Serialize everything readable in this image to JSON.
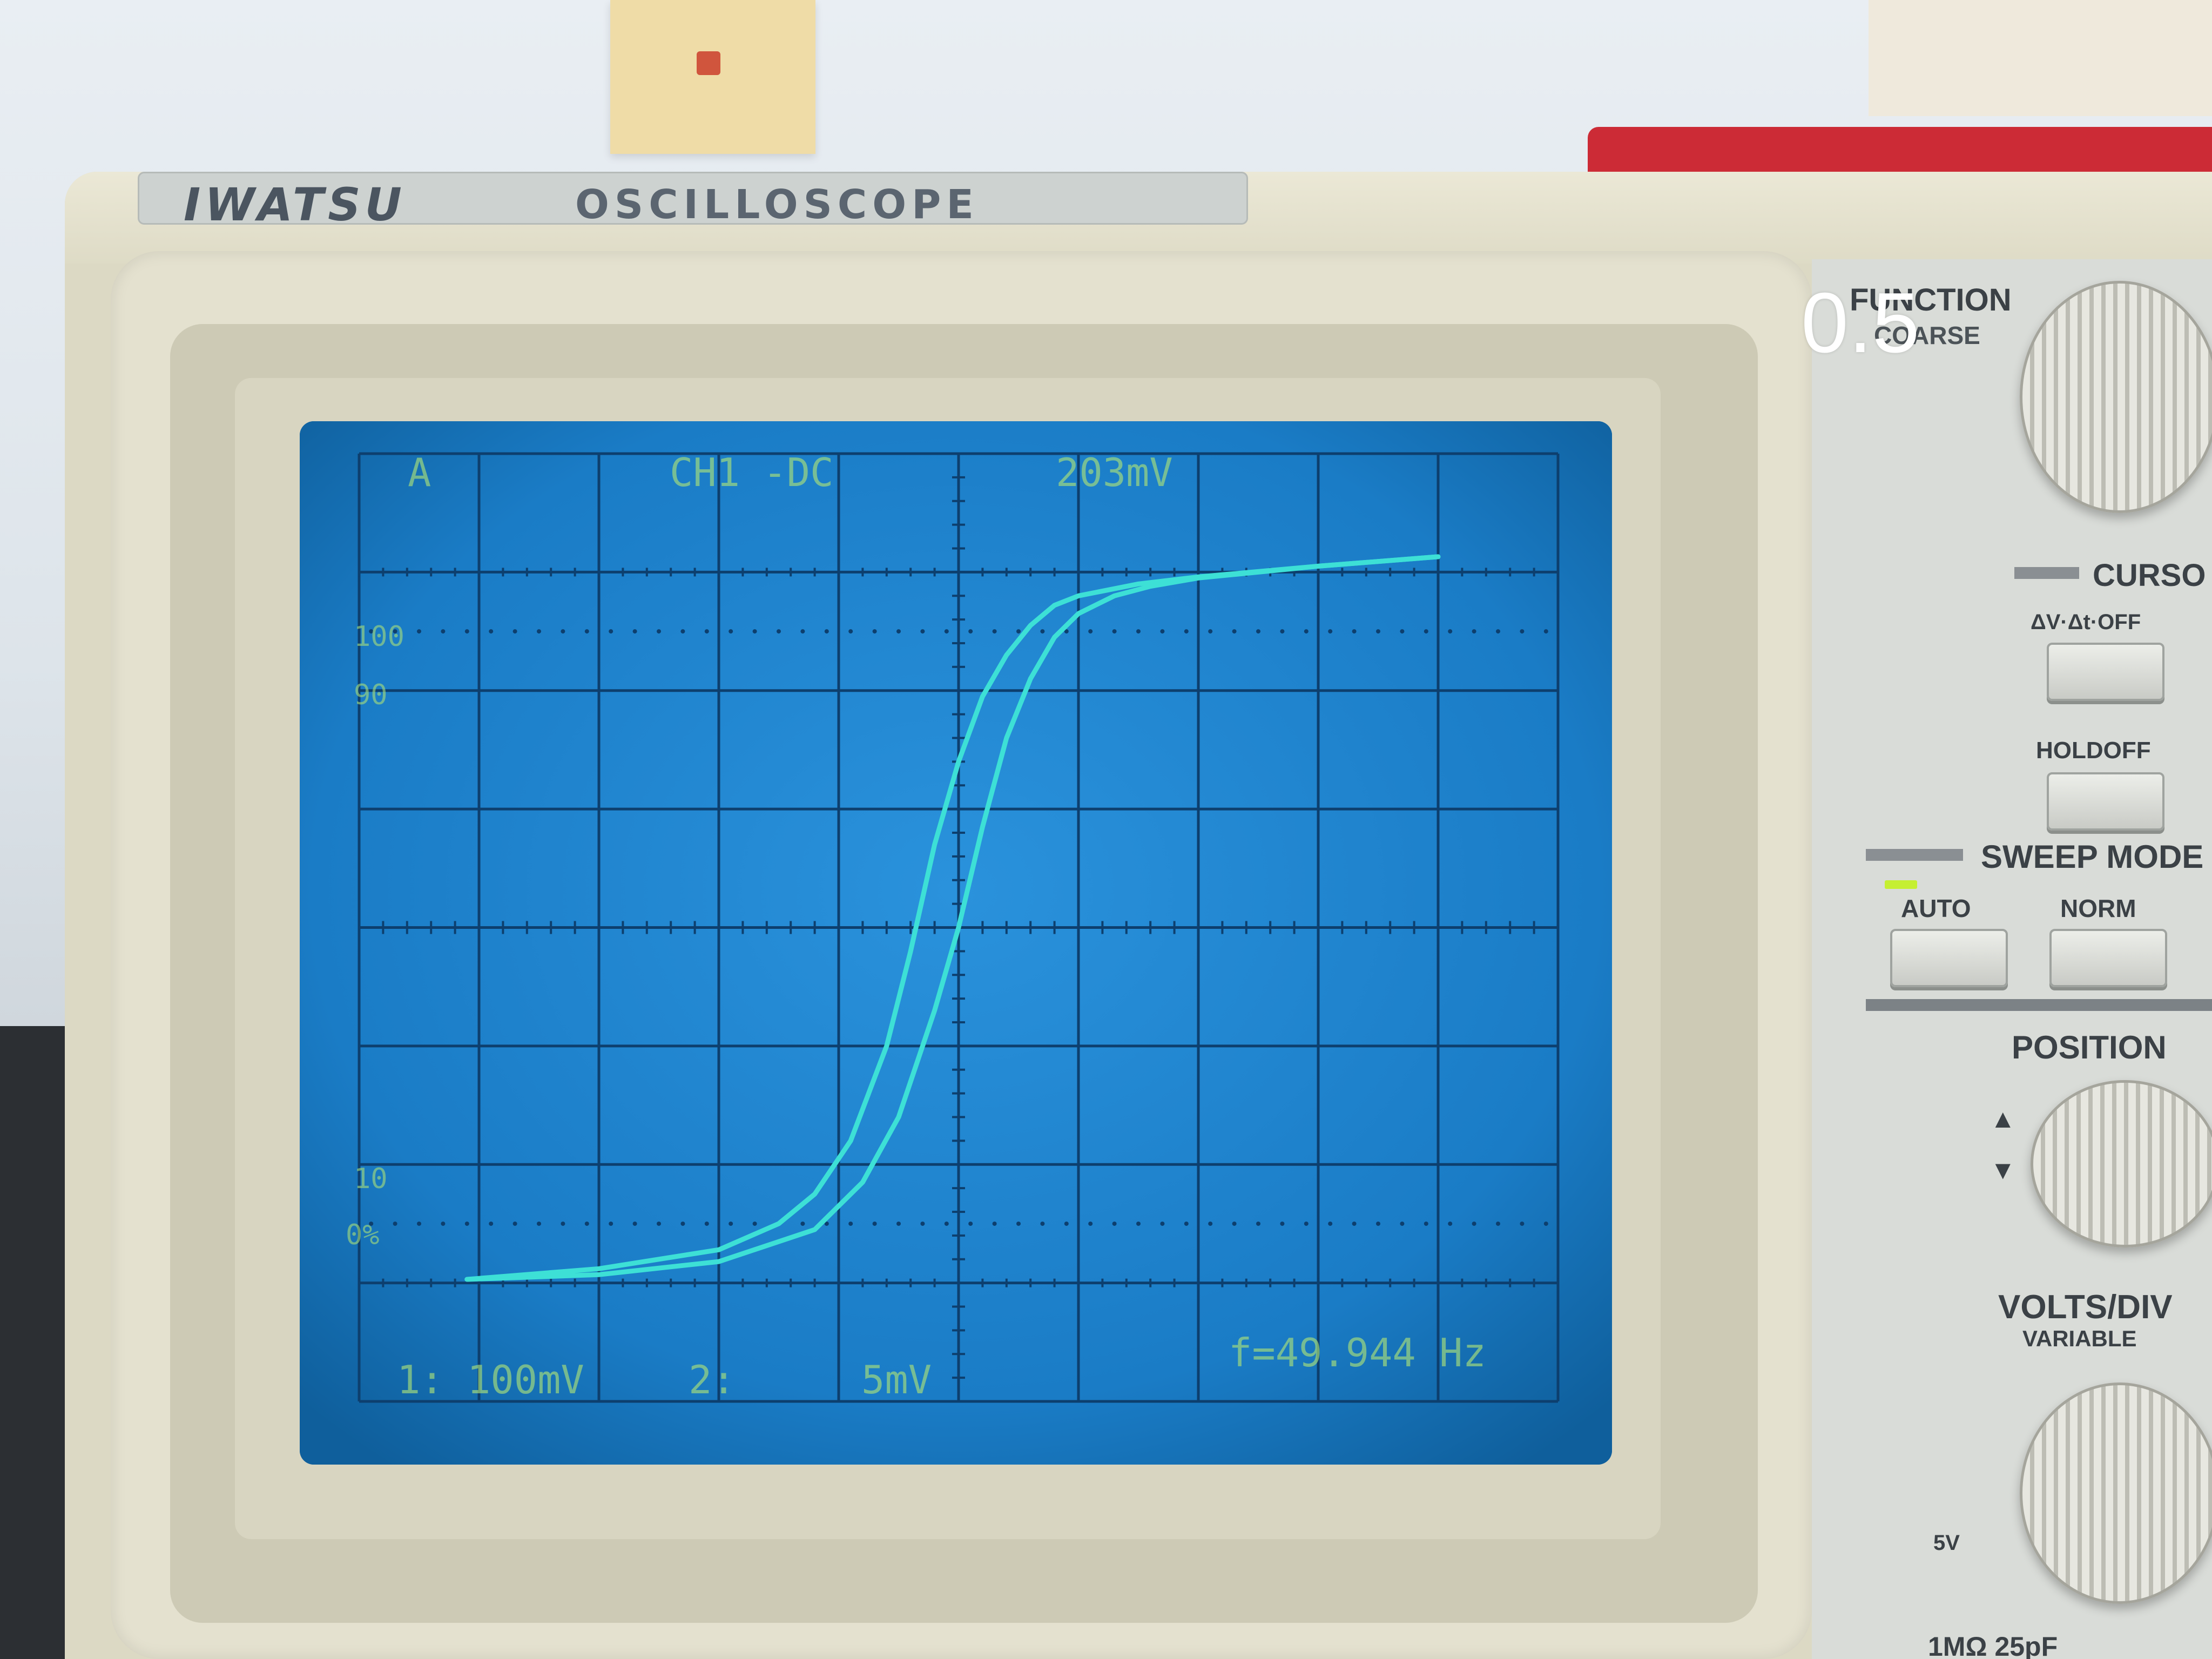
{
  "case": {
    "brand": "IWATSU",
    "model": "OSCILLOSCOPE"
  },
  "screen": {
    "readout_channel_marker": "A",
    "readout_coupling": "CH1 -DC",
    "readout_level": "203mV",
    "graticule_labels": [
      "100",
      "90",
      "10",
      "0%"
    ],
    "ch1_scale": "1: 100mV",
    "ch2_label": "2:",
    "ch2_scale": "5mV",
    "frequency_readout": "f=49.944 Hz",
    "trace_color": "#3de0d6",
    "screen_color": "#1a80cc"
  },
  "chart_data": {
    "type": "line",
    "title": "",
    "xlabel": "",
    "ylabel": "",
    "xlim": [
      -5,
      5
    ],
    "ylim": [
      -4,
      4
    ],
    "series": [
      {
        "x": [
          -4.1,
          -3.0,
          -2.0,
          -1.5,
          -1.2,
          -0.9,
          -0.6,
          -0.4,
          -0.2,
          0.0,
          0.2,
          0.4,
          0.6,
          0.8,
          1.0,
          1.5,
          2.0,
          3.0,
          4.0
        ],
        "y": [
          -2.97,
          -2.88,
          -2.72,
          -2.5,
          -2.25,
          -1.8,
          -1.0,
          -0.2,
          0.7,
          1.4,
          1.95,
          2.3,
          2.55,
          2.72,
          2.8,
          2.9,
          2.96,
          3.05,
          3.13
        ]
      },
      {
        "x": [
          -4.1,
          -3.0,
          -2.0,
          -1.2,
          -0.8,
          -0.5,
          -0.2,
          0.0,
          0.2,
          0.4,
          0.6,
          0.8,
          1.0,
          1.3,
          1.6,
          2.0,
          3.0,
          4.0
        ],
        "y": [
          -2.97,
          -2.93,
          -2.82,
          -2.55,
          -2.15,
          -1.6,
          -0.7,
          0.0,
          0.85,
          1.6,
          2.1,
          2.45,
          2.65,
          2.8,
          2.88,
          2.95,
          3.05,
          3.13
        ]
      }
    ]
  },
  "panel": {
    "overlay_value": "0.5",
    "function_label": "FUNCTION",
    "coarse_label": "COARSE",
    "cursor_label": "CURSO",
    "dv_dt_label": "ΔV·Δt·OFF",
    "holdoff_label": "HOLDOFF",
    "sweep_mode_label": "SWEEP MODE",
    "auto_label": "AUTO",
    "norm_label": "NORM",
    "position_label": "POSITION",
    "volts_div_label": "VOLTS/DIV",
    "variable_label": "VARIABLE",
    "five_v_label": "5V",
    "input_spec_label": "1MΩ 25pF"
  }
}
